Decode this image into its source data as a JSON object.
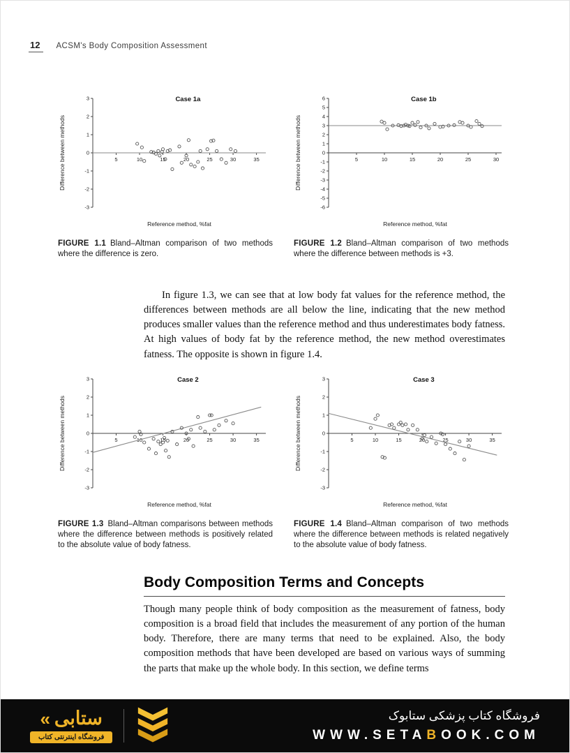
{
  "header": {
    "page_number": "12",
    "running_title": "ACSM's Body Composition Assessment"
  },
  "figures": [
    {
      "label": "FIGURE 1.1",
      "caption": "Bland–Altman comparison of two methods where the difference is zero."
    },
    {
      "label": "FIGURE 1.2",
      "caption": "Bland–Altman comparison of two methods where the difference between methods is +3."
    },
    {
      "label": "FIGURE 1.3",
      "caption": "Bland–Altman comparisons between methods where the difference between methods is positively related to the absolute value of body fatness."
    },
    {
      "label": "FIGURE 1.4",
      "caption": "Bland–Altman comparison of two methods where the difference between methods is related negatively to the absolute value of body fatness."
    }
  ],
  "paragraphs": {
    "between_figures": "In figure 1.3, we can see that at low body fat values for the reference method, the differences between methods are all below the line, indicating that the new method produces smaller values than the reference method and thus underestimates body fatness. At high values of body fat by the reference method, the new method overestimates fatness. The opposite is shown in figure 1.4.",
    "section_body": "Though many people think of body composition as the measurement of fatness, body composition is a broad field that includes the measurement of any portion of the human body. Therefore, there are many terms that need to be explained. Also, the body composition methods that have been developed are based on various ways of summing the parts that make up the whole body. In this section, we define terms"
  },
  "section": {
    "title": "Body Composition Terms and Concepts"
  },
  "chart_data": [
    {
      "type": "scatter",
      "title": "Case 1a",
      "xlabel": "Reference method, %fat",
      "ylabel": "Difference between methods",
      "xlim": [
        0,
        37
      ],
      "xticks": [
        5,
        10,
        15,
        20,
        25,
        30,
        35
      ],
      "ylim": [
        -3,
        3
      ],
      "yticks": [
        -3,
        -2,
        -1,
        0,
        1,
        2,
        3
      ],
      "ref_line": {
        "kind": "horizontal",
        "y": 0
      },
      "points": [
        [
          9.5,
          0.5
        ],
        [
          10.5,
          0.3
        ],
        [
          11,
          -0.45
        ],
        [
          12.5,
          0.05
        ],
        [
          13,
          0.02
        ],
        [
          13.5,
          -0.05
        ],
        [
          14,
          0.1
        ],
        [
          14.3,
          -0.15
        ],
        [
          14.8,
          0.05
        ],
        [
          15,
          0.2
        ],
        [
          15.5,
          -0.35
        ],
        [
          16,
          0.1
        ],
        [
          16.5,
          0.15
        ],
        [
          17,
          -0.9
        ],
        [
          18.5,
          0.35
        ],
        [
          19,
          -0.55
        ],
        [
          20,
          -0.15
        ],
        [
          20.5,
          0.7
        ],
        [
          21,
          -0.65
        ],
        [
          21.8,
          -0.75
        ],
        [
          22.5,
          -0.5
        ],
        [
          23,
          0.1
        ],
        [
          23.5,
          -0.85
        ],
        [
          24.5,
          0.2
        ],
        [
          25.3,
          0.65
        ],
        [
          25.8,
          0.68
        ],
        [
          26.5,
          0.1
        ],
        [
          27.5,
          -0.35
        ],
        [
          28.5,
          -0.55
        ],
        [
          29.5,
          0.2
        ],
        [
          30.5,
          0.1
        ]
      ]
    },
    {
      "type": "scatter",
      "title": "Case 1b",
      "xlabel": "Reference method, %fat",
      "ylabel": "Difference between methods",
      "xlim": [
        0,
        31
      ],
      "xticks": [
        5,
        10,
        15,
        20,
        25,
        30
      ],
      "ylim": [
        -6,
        6
      ],
      "yticks": [
        -6,
        -5,
        -4,
        -3,
        -2,
        -1,
        0,
        1,
        2,
        3,
        4,
        5,
        6
      ],
      "ref_line": {
        "kind": "horizontal",
        "y": 3
      },
      "points": [
        [
          9.5,
          3.45
        ],
        [
          10,
          3.3
        ],
        [
          10.5,
          2.6
        ],
        [
          11.5,
          3.0
        ],
        [
          12.5,
          3.05
        ],
        [
          13,
          2.95
        ],
        [
          13.5,
          3.0
        ],
        [
          13.8,
          3.1
        ],
        [
          14.2,
          3.0
        ],
        [
          14.5,
          2.95
        ],
        [
          15,
          3.3
        ],
        [
          15.5,
          3.05
        ],
        [
          16,
          3.4
        ],
        [
          16.5,
          2.8
        ],
        [
          17.5,
          3.0
        ],
        [
          18,
          2.7
        ],
        [
          19,
          3.2
        ],
        [
          20,
          2.85
        ],
        [
          20.5,
          2.9
        ],
        [
          21.5,
          3.0
        ],
        [
          22.5,
          3.05
        ],
        [
          23.5,
          3.4
        ],
        [
          24,
          3.3
        ],
        [
          25,
          3.0
        ],
        [
          25.5,
          2.85
        ],
        [
          26.5,
          3.5
        ],
        [
          27,
          3.2
        ],
        [
          27.5,
          2.95
        ]
      ]
    },
    {
      "type": "scatter",
      "title": "Case 2",
      "xlabel": "Reference method, %fat",
      "ylabel": "Difference between methods",
      "xlim": [
        0,
        37
      ],
      "xticks": [
        5,
        10,
        15,
        20,
        25,
        30,
        35
      ],
      "ylim": [
        -3,
        3
      ],
      "yticks": [
        -3,
        -2,
        -1,
        0,
        1,
        2,
        3
      ],
      "ref_line": {
        "kind": "trend",
        "from": [
          0,
          -1.05
        ],
        "to": [
          36,
          1.45
        ]
      },
      "points": [
        [
          9,
          -0.2
        ],
        [
          10,
          0.1
        ],
        [
          10.3,
          -0.05
        ],
        [
          11,
          -0.5
        ],
        [
          12,
          -0.85
        ],
        [
          13,
          -0.3
        ],
        [
          13.5,
          -1.1
        ],
        [
          14,
          -0.45
        ],
        [
          14.5,
          -0.6
        ],
        [
          15,
          -0.5
        ],
        [
          15.3,
          -0.25
        ],
        [
          15.6,
          -0.95
        ],
        [
          16,
          -0.4
        ],
        [
          16.3,
          -1.3
        ],
        [
          17,
          0.1
        ],
        [
          18,
          -0.6
        ],
        [
          19,
          0.3
        ],
        [
          20,
          0.0
        ],
        [
          20.5,
          -0.3
        ],
        [
          21,
          0.2
        ],
        [
          21.5,
          -0.7
        ],
        [
          22.5,
          0.9
        ],
        [
          23,
          0.3
        ],
        [
          24,
          0.1
        ],
        [
          25,
          1.0
        ],
        [
          25.4,
          1.0
        ],
        [
          26,
          0.2
        ],
        [
          27,
          0.45
        ],
        [
          28.5,
          0.7
        ],
        [
          30,
          0.55
        ]
      ]
    },
    {
      "type": "scatter",
      "title": "Case 3",
      "xlabel": "Reference method, %fat",
      "ylabel": "Difference between methods",
      "xlim": [
        0,
        37
      ],
      "xticks": [
        5,
        10,
        15,
        20,
        25,
        30,
        35
      ],
      "ylim": [
        -3,
        3
      ],
      "yticks": [
        -3,
        -2,
        -1,
        0,
        1,
        2,
        3
      ],
      "ref_line": {
        "kind": "trend",
        "from": [
          0,
          1.1
        ],
        "to": [
          36,
          -1.2
        ]
      },
      "points": [
        [
          9,
          0.3
        ],
        [
          10,
          0.8
        ],
        [
          10.5,
          1.0
        ],
        [
          11.5,
          -1.3
        ],
        [
          12,
          -1.35
        ],
        [
          13,
          0.45
        ],
        [
          13.5,
          0.5
        ],
        [
          14,
          0.3
        ],
        [
          15,
          0.5
        ],
        [
          15.4,
          0.6
        ],
        [
          15.8,
          0.45
        ],
        [
          16.5,
          0.5
        ],
        [
          17,
          0.2
        ],
        [
          18,
          0.45
        ],
        [
          19,
          0.2
        ],
        [
          20,
          -0.3
        ],
        [
          20.5,
          -0.1
        ],
        [
          21,
          -0.45
        ],
        [
          22,
          -0.2
        ],
        [
          23,
          -0.55
        ],
        [
          24,
          0.0
        ],
        [
          24.4,
          -0.05
        ],
        [
          25,
          -0.6
        ],
        [
          26,
          -0.85
        ],
        [
          27,
          -1.1
        ],
        [
          28,
          -0.45
        ],
        [
          29,
          -1.45
        ],
        [
          30,
          -0.7
        ]
      ]
    }
  ],
  "footer": {
    "store_fa": "فروشگاه کتاب پزشکی ستابوک",
    "logo_fa": "ستابی",
    "logo_sub_fa": "فروشگاه اینترنتی کتاب",
    "laquo": "«",
    "url_prefix": "WWW.SETA",
    "url_highlight": "B",
    "url_suffix": "OOK.COM",
    "accent_color": "#f0b428"
  }
}
